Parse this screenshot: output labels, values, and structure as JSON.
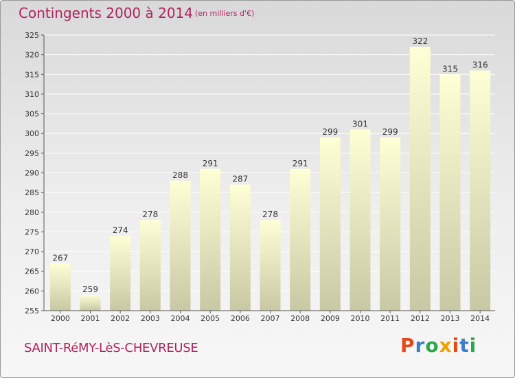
{
  "header": {
    "title": "Contingents 2000 à 2014",
    "subtitle": "(en milliers d'€)"
  },
  "footer": {
    "place": "SAINT-RéMY-LèS-CHEVREUSE",
    "logo": "Proxiti"
  },
  "colors": {
    "accent": "#b0245e",
    "bar_top": "#ffffd6",
    "bar_bottom": "#c8c8a4",
    "logo_letters": [
      "#e34a1a",
      "#3a7fc8",
      "#2aa84a",
      "#f0a000",
      "#e34a1a",
      "#3a7fc8",
      "#2aa84a"
    ]
  },
  "chart_data": {
    "type": "bar",
    "categories": [
      "2000",
      "2001",
      "2002",
      "2003",
      "2004",
      "2005",
      "2006",
      "2007",
      "2008",
      "2009",
      "2010",
      "2011",
      "2012",
      "2013",
      "2014"
    ],
    "values": [
      267,
      259,
      274,
      278,
      288,
      291,
      287,
      278,
      291,
      299,
      301,
      299,
      322,
      315,
      316
    ],
    "title": "Contingents 2000 à 2014",
    "subtitle": "(en milliers d'€)",
    "xlabel": "",
    "ylabel": "",
    "ylim": [
      255,
      325
    ],
    "yticks": [
      255,
      260,
      265,
      270,
      275,
      280,
      285,
      290,
      295,
      300,
      305,
      310,
      315,
      320,
      325
    ],
    "grid": true
  }
}
